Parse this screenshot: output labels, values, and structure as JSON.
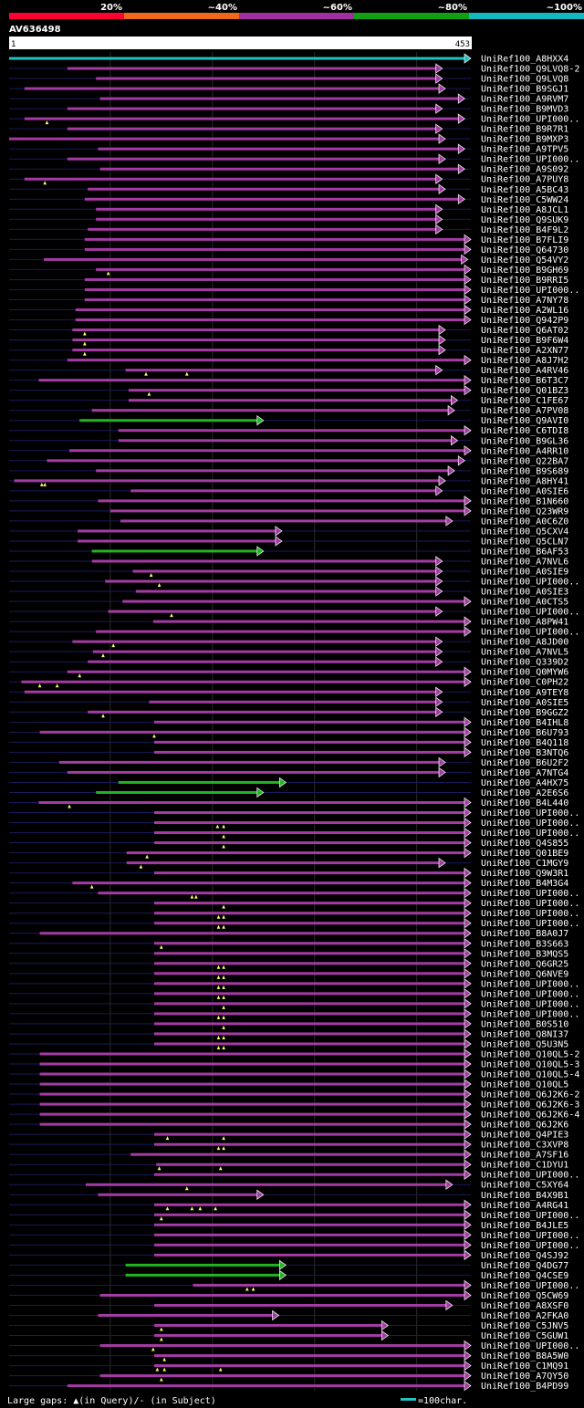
{
  "title": "AV636498",
  "identity_bins": [
    {
      "label": "20%",
      "color": "#ff0033"
    },
    {
      "label": "~40%",
      "color": "#ee6a1a"
    },
    {
      "label": "~60%",
      "color": "#a030a0"
    },
    {
      "label": "~80%",
      "color": "#12a012"
    },
    {
      "label": "~100%",
      "color": "#14b8c0"
    }
  ],
  "ruler": {
    "start": "1",
    "end": "453"
  },
  "colors": {
    "purple": "#a43ba4",
    "green": "#22b422",
    "cyan": "#22c2c2",
    "connector": "#1a1a5a",
    "gap_marker": "#ffff66"
  },
  "legend": {
    "gaps_text": "Large gaps: ▲(in Query)/- (in Subject)",
    "scale_text": "=100char."
  },
  "hits": [
    {
      "name": "UniRef100_A8HXX4",
      "s": 1,
      "e": 453,
      "c": "cyan"
    },
    {
      "name": "UniRef100_Q9LVQ8-2",
      "s": 58,
      "e": 425,
      "c": "purple"
    },
    {
      "name": "UniRef100_Q9LVQ8",
      "s": 86,
      "e": 425,
      "c": "purple"
    },
    {
      "name": "UniRef100_B9SGJ1",
      "s": 16,
      "e": 428,
      "c": "purple"
    },
    {
      "name": "UniRef100_A9RVM7",
      "s": 90,
      "e": 447,
      "c": "purple"
    },
    {
      "name": "UniRef100_B9MVD3",
      "s": 58,
      "e": 425,
      "c": "purple"
    },
    {
      "name": "UniRef100_UPI000..",
      "s": 16,
      "e": 447,
      "c": "purple",
      "g": [
        38
      ]
    },
    {
      "name": "UniRef100_B9R7R1",
      "s": 58,
      "e": 425,
      "c": "purple"
    },
    {
      "name": "UniRef100_B9MXP3",
      "s": 1,
      "e": 428,
      "c": "purple"
    },
    {
      "name": "UniRef100_A9TPV5",
      "s": 88,
      "e": 447,
      "c": "purple"
    },
    {
      "name": "UniRef100_UPI000..",
      "s": 58,
      "e": 428,
      "c": "purple"
    },
    {
      "name": "UniRef100_A9S092",
      "s": 90,
      "e": 447,
      "c": "purple"
    },
    {
      "name": "UniRef100_A7PUY8",
      "s": 16,
      "e": 425,
      "c": "purple",
      "g": [
        36
      ]
    },
    {
      "name": "UniRef100_A5BC43",
      "s": 78,
      "e": 428,
      "c": "purple"
    },
    {
      "name": "UniRef100_C5WW24",
      "s": 75,
      "e": 447,
      "c": "purple"
    },
    {
      "name": "UniRef100_A8JCL1",
      "s": 86,
      "e": 425,
      "c": "purple"
    },
    {
      "name": "UniRef100_Q9SUK9",
      "s": 86,
      "e": 425,
      "c": "purple"
    },
    {
      "name": "UniRef100_B4F9L2",
      "s": 78,
      "e": 425,
      "c": "purple"
    },
    {
      "name": "UniRef100_B7FLI9",
      "s": 75,
      "e": 453,
      "c": "purple"
    },
    {
      "name": "UniRef100_Q64730",
      "s": 75,
      "e": 453,
      "c": "purple"
    },
    {
      "name": "UniRef100_Q54VY2",
      "s": 35,
      "e": 450,
      "c": "purple"
    },
    {
      "name": "UniRef100_B9GH69",
      "s": 86,
      "e": 453,
      "c": "purple",
      "g": [
        98
      ]
    },
    {
      "name": "UniRef100_B9RRI5",
      "s": 75,
      "e": 453,
      "c": "purple"
    },
    {
      "name": "UniRef100_UPI000..",
      "s": 75,
      "e": 453,
      "c": "purple"
    },
    {
      "name": "UniRef100_A7NY78",
      "s": 75,
      "e": 453,
      "c": "purple"
    },
    {
      "name": "UniRef100_A2WL16",
      "s": 66,
      "e": 453,
      "c": "purple"
    },
    {
      "name": "UniRef100_Q942P9",
      "s": 66,
      "e": 453,
      "c": "purple"
    },
    {
      "name": "UniRef100_Q6AT02",
      "s": 63,
      "e": 428,
      "c": "purple",
      "g": [
        75
      ]
    },
    {
      "name": "UniRef100_B9F6W4",
      "s": 63,
      "e": 428,
      "c": "purple",
      "g": [
        75
      ]
    },
    {
      "name": "UniRef100_A2XN77",
      "s": 63,
      "e": 428,
      "c": "purple",
      "g": [
        75
      ]
    },
    {
      "name": "UniRef100_A8J7H2",
      "s": 58,
      "e": 453,
      "c": "purple"
    },
    {
      "name": "UniRef100_A4RV46",
      "s": 115,
      "e": 425,
      "c": "purple",
      "g": [
        135,
        175
      ]
    },
    {
      "name": "UniRef100_B6T3C7",
      "s": 30,
      "e": 453,
      "c": "purple"
    },
    {
      "name": "UniRef100_Q01BZ3",
      "s": 118,
      "e": 453,
      "c": "purple",
      "g": [
        138
      ]
    },
    {
      "name": "UniRef100_C1FE67",
      "s": 118,
      "e": 440,
      "c": "purple"
    },
    {
      "name": "UniRef100_A7PV08",
      "s": 82,
      "e": 437,
      "c": "purple"
    },
    {
      "name": "UniRef100_Q9AVI0",
      "s": 70,
      "e": 250,
      "c": "green"
    },
    {
      "name": "UniRef100_C6TDI8",
      "s": 108,
      "e": 453,
      "c": "purple"
    },
    {
      "name": "UniRef100_B9GL36",
      "s": 108,
      "e": 440,
      "c": "purple"
    },
    {
      "name": "UniRef100_A4RR10",
      "s": 60,
      "e": 453,
      "c": "purple"
    },
    {
      "name": "UniRef100_Q22BA7",
      "s": 38,
      "e": 447,
      "c": "purple"
    },
    {
      "name": "UniRef100_B9S689",
      "s": 86,
      "e": 437,
      "c": "purple"
    },
    {
      "name": "UniRef100_A8HY41",
      "s": 6,
      "e": 428,
      "c": "purple",
      "g": [
        33,
        36
      ]
    },
    {
      "name": "UniRef100_A0SIE6",
      "s": 120,
      "e": 425,
      "c": "purple"
    },
    {
      "name": "UniRef100_B1N660",
      "s": 88,
      "e": 453,
      "c": "purple"
    },
    {
      "name": "UniRef100_Q23WR9",
      "s": 100,
      "e": 453,
      "c": "purple"
    },
    {
      "name": "UniRef100_A0C6Z0",
      "s": 110,
      "e": 435,
      "c": "purple"
    },
    {
      "name": "UniRef100_Q5CXV4",
      "s": 68,
      "e": 268,
      "c": "purple"
    },
    {
      "name": "UniRef100_Q5CLN7",
      "s": 68,
      "e": 268,
      "c": "purple"
    },
    {
      "name": "UniRef100_B6AF53",
      "s": 82,
      "e": 250,
      "c": "green"
    },
    {
      "name": "UniRef100_A7NVL6",
      "s": 82,
      "e": 425,
      "c": "purple"
    },
    {
      "name": "UniRef100_A0SIE9",
      "s": 122,
      "e": 425,
      "c": "purple",
      "g": [
        140
      ]
    },
    {
      "name": "UniRef100_UPI000..",
      "s": 95,
      "e": 425,
      "c": "purple",
      "g": [
        148
      ]
    },
    {
      "name": "UniRef100_A0SIE3",
      "s": 125,
      "e": 425,
      "c": "purple"
    },
    {
      "name": "UniRef100_A0CTS5",
      "s": 112,
      "e": 453,
      "c": "purple"
    },
    {
      "name": "UniRef100_UPI000..",
      "s": 98,
      "e": 425,
      "c": "purple",
      "g": [
        160
      ]
    },
    {
      "name": "UniRef100_A8PW41",
      "s": 142,
      "e": 453,
      "c": "purple"
    },
    {
      "name": "UniRef100_UPI000..",
      "s": 86,
      "e": 453,
      "c": "purple"
    },
    {
      "name": "UniRef100_A8JD00",
      "s": 63,
      "e": 425,
      "c": "purple",
      "g": [
        103
      ]
    },
    {
      "name": "UniRef100_A7NVL5",
      "s": 83,
      "e": 425,
      "c": "purple",
      "g": [
        93
      ]
    },
    {
      "name": "UniRef100_Q339D2",
      "s": 78,
      "e": 425,
      "c": "purple"
    },
    {
      "name": "UniRef100_Q0MYW6",
      "s": 58,
      "e": 453,
      "c": "purple",
      "g": [
        70
      ]
    },
    {
      "name": "UniRef100_C0PH22",
      "s": 13,
      "e": 453,
      "c": "purple",
      "g": [
        31,
        48
      ]
    },
    {
      "name": "UniRef100_A9TEY8",
      "s": 16,
      "e": 425,
      "c": "purple"
    },
    {
      "name": "UniRef100_A0SIE5",
      "s": 138,
      "e": 425,
      "c": "purple"
    },
    {
      "name": "UniRef100_B9GGZ2",
      "s": 78,
      "e": 425,
      "c": "purple",
      "g": [
        93
      ]
    },
    {
      "name": "UniRef100_B4IHL8",
      "s": 143,
      "e": 453,
      "c": "purple"
    },
    {
      "name": "UniRef100_B6U793",
      "s": 31,
      "e": 453,
      "c": "purple",
      "g": [
        143
      ]
    },
    {
      "name": "UniRef100_B4Q118",
      "s": 143,
      "e": 453,
      "c": "purple"
    },
    {
      "name": "UniRef100_B3NTQ6",
      "s": 143,
      "e": 453,
      "c": "purple"
    },
    {
      "name": "UniRef100_B6U2F2",
      "s": 50,
      "e": 428,
      "c": "purple"
    },
    {
      "name": "UniRef100_A7NTG4",
      "s": 58,
      "e": 428,
      "c": "purple"
    },
    {
      "name": "UniRef100_A4HX75",
      "s": 108,
      "e": 272,
      "c": "green"
    },
    {
      "name": "UniRef100_A2E6S6",
      "s": 86,
      "e": 250,
      "c": "green"
    },
    {
      "name": "UniRef100_B4L440",
      "s": 30,
      "e": 453,
      "c": "purple",
      "g": [
        60
      ]
    },
    {
      "name": "UniRef100_UPI000..",
      "s": 143,
      "e": 453,
      "c": "purple"
    },
    {
      "name": "UniRef100_UPI000..",
      "s": 143,
      "e": 453,
      "c": "purple",
      "g": [
        205,
        211
      ]
    },
    {
      "name": "UniRef100_UPI000..",
      "s": 143,
      "e": 453,
      "c": "purple",
      "g": [
        211
      ]
    },
    {
      "name": "UniRef100_Q4S855",
      "s": 143,
      "e": 453,
      "c": "purple",
      "g": [
        211
      ]
    },
    {
      "name": "UniRef100_Q01BE9",
      "s": 116,
      "e": 453,
      "c": "purple",
      "g": [
        136
      ]
    },
    {
      "name": "UniRef100_C1MGY9",
      "s": 116,
      "e": 428,
      "c": "purple",
      "g": [
        130
      ]
    },
    {
      "name": "UniRef100_Q9W3R1",
      "s": 143,
      "e": 453,
      "c": "purple"
    },
    {
      "name": "UniRef100_B4M3G4",
      "s": 63,
      "e": 453,
      "c": "purple",
      "g": [
        82
      ]
    },
    {
      "name": "UniRef100_UPI000..",
      "s": 88,
      "e": 453,
      "c": "purple",
      "g": [
        180,
        184
      ]
    },
    {
      "name": "UniRef100_UPI000..",
      "s": 143,
      "e": 453,
      "c": "purple",
      "g": [
        211
      ]
    },
    {
      "name": "UniRef100_UPI000..",
      "s": 143,
      "e": 453,
      "c": "purple",
      "g": [
        206,
        211
      ]
    },
    {
      "name": "UniRef100_UPI000..",
      "s": 143,
      "e": 453,
      "c": "purple",
      "g": [
        206,
        211
      ]
    },
    {
      "name": "UniRef100_B8A0J7",
      "s": 31,
      "e": 453,
      "c": "purple"
    },
    {
      "name": "UniRef100_B3S663",
      "s": 143,
      "e": 453,
      "c": "purple",
      "g": [
        150
      ]
    },
    {
      "name": "UniRef100_B3MQS5",
      "s": 143,
      "e": 453,
      "c": "purple"
    },
    {
      "name": "UniRef100_Q6GR25",
      "s": 143,
      "e": 453,
      "c": "purple",
      "g": [
        206,
        211
      ]
    },
    {
      "name": "UniRef100_Q6NVE9",
      "s": 143,
      "e": 453,
      "c": "purple",
      "g": [
        206,
        211
      ]
    },
    {
      "name": "UniRef100_UPI000..",
      "s": 143,
      "e": 453,
      "c": "purple",
      "g": [
        206,
        211
      ]
    },
    {
      "name": "UniRef100_UPI000..",
      "s": 143,
      "e": 453,
      "c": "purple",
      "g": [
        206,
        211
      ]
    },
    {
      "name": "UniRef100_UPI000..",
      "s": 143,
      "e": 453,
      "c": "purple",
      "g": [
        211
      ]
    },
    {
      "name": "UniRef100_UPI000..",
      "s": 143,
      "e": 453,
      "c": "purple",
      "g": [
        206,
        211
      ]
    },
    {
      "name": "UniRef100_B0S510",
      "s": 143,
      "e": 453,
      "c": "purple",
      "g": [
        211
      ]
    },
    {
      "name": "UniRef100_Q8NI37",
      "s": 143,
      "e": 453,
      "c": "purple",
      "g": [
        206,
        211
      ]
    },
    {
      "name": "UniRef100_Q5U3N5",
      "s": 143,
      "e": 453,
      "c": "purple",
      "g": [
        206,
        211
      ]
    },
    {
      "name": "UniRef100_Q10QL5-2",
      "s": 31,
      "e": 453,
      "c": "purple"
    },
    {
      "name": "UniRef100_Q10QL5-3",
      "s": 31,
      "e": 453,
      "c": "purple"
    },
    {
      "name": "UniRef100_Q10QL5-4",
      "s": 31,
      "e": 453,
      "c": "purple"
    },
    {
      "name": "UniRef100_Q10QL5",
      "s": 31,
      "e": 453,
      "c": "purple"
    },
    {
      "name": "UniRef100_Q6J2K6-2",
      "s": 31,
      "e": 453,
      "c": "purple"
    },
    {
      "name": "UniRef100_Q6J2K6-3",
      "s": 31,
      "e": 453,
      "c": "purple"
    },
    {
      "name": "UniRef100_Q6J2K6-4",
      "s": 31,
      "e": 453,
      "c": "purple"
    },
    {
      "name": "UniRef100_Q6J2K6",
      "s": 31,
      "e": 453,
      "c": "purple"
    },
    {
      "name": "UniRef100_Q4PIE3",
      "s": 143,
      "e": 453,
      "c": "purple",
      "g": [
        156,
        211
      ]
    },
    {
      "name": "UniRef100_C3XVP8",
      "s": 143,
      "e": 453,
      "c": "purple",
      "g": [
        206,
        211
      ]
    },
    {
      "name": "UniRef100_A7SF16",
      "s": 120,
      "e": 453,
      "c": "purple"
    },
    {
      "name": "UniRef100_C1DYU1",
      "s": 145,
      "e": 453,
      "c": "purple",
      "g": [
        148,
        208
      ]
    },
    {
      "name": "UniRef100_UPI000..",
      "s": 143,
      "e": 453,
      "c": "purple"
    },
    {
      "name": "UniRef100_C5XY64",
      "s": 76,
      "e": 435,
      "c": "purple",
      "g": [
        175
      ]
    },
    {
      "name": "UniRef100_B4X9B1",
      "s": 88,
      "e": 250,
      "c": "purple"
    },
    {
      "name": "UniRef100_A4RG41",
      "s": 143,
      "e": 453,
      "c": "purple",
      "g": [
        156,
        180,
        188,
        203
      ]
    },
    {
      "name": "UniRef100_UPI000..",
      "s": 143,
      "e": 453,
      "c": "purple",
      "g": [
        150
      ]
    },
    {
      "name": "UniRef100_B4JLE5",
      "s": 143,
      "e": 453,
      "c": "purple"
    },
    {
      "name": "UniRef100_UPI000..",
      "s": 143,
      "e": 453,
      "c": "purple"
    },
    {
      "name": "UniRef100_UPI000..",
      "s": 143,
      "e": 453,
      "c": "purple"
    },
    {
      "name": "UniRef100_Q4SJ92",
      "s": 143,
      "e": 453,
      "c": "purple"
    },
    {
      "name": "UniRef100_Q4DG77",
      "s": 115,
      "e": 272,
      "c": "green"
    },
    {
      "name": "UniRef100_Q4CSE9",
      "s": 115,
      "e": 272,
      "c": "green"
    },
    {
      "name": "UniRef100_UPI000..",
      "s": 181,
      "e": 453,
      "c": "purple",
      "g": [
        234,
        240
      ]
    },
    {
      "name": "UniRef100_Q5CW69",
      "s": 90,
      "e": 453,
      "c": "purple"
    },
    {
      "name": "UniRef100_A8XSF0",
      "s": 143,
      "e": 435,
      "c": "purple"
    },
    {
      "name": "UniRef100_A2FKA0",
      "s": 88,
      "e": 265,
      "c": "purple"
    },
    {
      "name": "UniRef100_C5JNV5",
      "s": 143,
      "e": 372,
      "c": "purple",
      "g": [
        150
      ]
    },
    {
      "name": "UniRef100_C5GUW1",
      "s": 143,
      "e": 372,
      "c": "purple",
      "g": [
        150
      ]
    },
    {
      "name": "UniRef100_UPI000..",
      "s": 90,
      "e": 453,
      "c": "purple",
      "g": [
        142
      ]
    },
    {
      "name": "UniRef100_B8A5W0",
      "s": 143,
      "e": 453,
      "c": "purple",
      "g": [
        153
      ]
    },
    {
      "name": "UniRef100_C1MQ91",
      "s": 143,
      "e": 453,
      "c": "purple",
      "g": [
        146,
        153,
        208
      ]
    },
    {
      "name": "UniRef100_A7QY50",
      "s": 90,
      "e": 453,
      "c": "purple",
      "g": [
        150
      ]
    },
    {
      "name": "UniRef100_B4PD99",
      "s": 58,
      "e": 453,
      "c": "purple"
    }
  ]
}
